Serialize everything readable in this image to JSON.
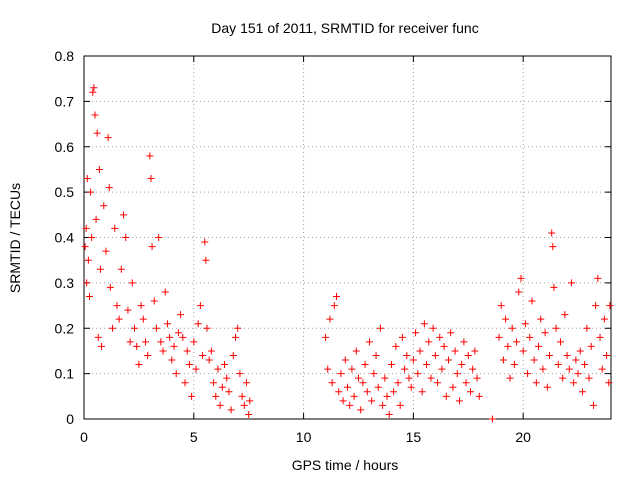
{
  "chart_data": {
    "type": "scatter",
    "title": "Day 151 of 2011, SRMTID for receiver func",
    "xlabel": "GPS time / hours",
    "ylabel": "SRMTID / TECUs",
    "xlim": [
      0,
      24
    ],
    "ylim": [
      0,
      0.8
    ],
    "xticks": [
      0,
      5,
      10,
      15,
      20
    ],
    "yticks": [
      0,
      0.1,
      0.2,
      0.3,
      0.4,
      0.5,
      0.6,
      0.7,
      0.8
    ],
    "grid": true,
    "marker": "plus",
    "color": "#ff0000",
    "series": [
      {
        "name": "SRMTID",
        "points": [
          [
            0.05,
            0.38
          ],
          [
            0.1,
            0.42
          ],
          [
            0.12,
            0.3
          ],
          [
            0.15,
            0.53
          ],
          [
            0.2,
            0.35
          ],
          [
            0.25,
            0.27
          ],
          [
            0.3,
            0.5
          ],
          [
            0.35,
            0.4
          ],
          [
            0.4,
            0.72
          ],
          [
            0.45,
            0.73
          ],
          [
            0.5,
            0.67
          ],
          [
            0.55,
            0.44
          ],
          [
            0.6,
            0.63
          ],
          [
            0.65,
            0.18
          ],
          [
            0.7,
            0.55
          ],
          [
            0.75,
            0.33
          ],
          [
            0.8,
            0.16
          ],
          [
            0.9,
            0.47
          ],
          [
            1.0,
            0.37
          ],
          [
            1.1,
            0.62
          ],
          [
            1.15,
            0.51
          ],
          [
            1.2,
            0.29
          ],
          [
            1.3,
            0.2
          ],
          [
            1.4,
            0.42
          ],
          [
            1.5,
            0.25
          ],
          [
            1.6,
            0.22
          ],
          [
            1.7,
            0.33
          ],
          [
            1.8,
            0.45
          ],
          [
            1.9,
            0.4
          ],
          [
            2.0,
            0.24
          ],
          [
            2.1,
            0.17
          ],
          [
            2.2,
            0.3
          ],
          [
            2.3,
            0.2
          ],
          [
            2.4,
            0.16
          ],
          [
            2.5,
            0.12
          ],
          [
            2.6,
            0.25
          ],
          [
            2.7,
            0.22
          ],
          [
            2.8,
            0.17
          ],
          [
            2.9,
            0.14
          ],
          [
            3.0,
            0.58
          ],
          [
            3.05,
            0.53
          ],
          [
            3.1,
            0.38
          ],
          [
            3.2,
            0.26
          ],
          [
            3.3,
            0.2
          ],
          [
            3.4,
            0.4
          ],
          [
            3.5,
            0.17
          ],
          [
            3.6,
            0.15
          ],
          [
            3.7,
            0.28
          ],
          [
            3.8,
            0.21
          ],
          [
            3.9,
            0.18
          ],
          [
            4.0,
            0.13
          ],
          [
            4.1,
            0.16
          ],
          [
            4.2,
            0.1
          ],
          [
            4.3,
            0.19
          ],
          [
            4.4,
            0.23
          ],
          [
            4.5,
            0.18
          ],
          [
            4.6,
            0.08
          ],
          [
            4.7,
            0.15
          ],
          [
            4.8,
            0.12
          ],
          [
            4.9,
            0.05
          ],
          [
            5.0,
            0.17
          ],
          [
            5.1,
            0.11
          ],
          [
            5.2,
            0.21
          ],
          [
            5.3,
            0.25
          ],
          [
            5.4,
            0.14
          ],
          [
            5.5,
            0.39
          ],
          [
            5.55,
            0.35
          ],
          [
            5.6,
            0.2
          ],
          [
            5.7,
            0.13
          ],
          [
            5.8,
            0.15
          ],
          [
            5.9,
            0.08
          ],
          [
            6.0,
            0.05
          ],
          [
            6.1,
            0.11
          ],
          [
            6.2,
            0.03
          ],
          [
            6.3,
            0.07
          ],
          [
            6.4,
            0.12
          ],
          [
            6.5,
            0.09
          ],
          [
            6.6,
            0.06
          ],
          [
            6.7,
            0.02
          ],
          [
            6.8,
            0.14
          ],
          [
            6.9,
            0.18
          ],
          [
            7.0,
            0.2
          ],
          [
            7.1,
            0.1
          ],
          [
            7.2,
            0.05
          ],
          [
            7.3,
            0.03
          ],
          [
            7.4,
            0.08
          ],
          [
            7.5,
            0.01
          ],
          [
            7.55,
            0.04
          ],
          [
            11.0,
            0.18
          ],
          [
            11.1,
            0.11
          ],
          [
            11.2,
            0.22
          ],
          [
            11.3,
            0.08
          ],
          [
            11.4,
            0.25
          ],
          [
            11.5,
            0.27
          ],
          [
            11.6,
            0.06
          ],
          [
            11.7,
            0.1
          ],
          [
            11.8,
            0.04
          ],
          [
            11.9,
            0.13
          ],
          [
            12.0,
            0.07
          ],
          [
            12.1,
            0.03
          ],
          [
            12.2,
            0.11
          ],
          [
            12.3,
            0.05
          ],
          [
            12.4,
            0.15
          ],
          [
            12.5,
            0.09
          ],
          [
            12.6,
            0.02
          ],
          [
            12.7,
            0.08
          ],
          [
            12.8,
            0.12
          ],
          [
            12.9,
            0.06
          ],
          [
            13.0,
            0.17
          ],
          [
            13.1,
            0.04
          ],
          [
            13.2,
            0.1
          ],
          [
            13.3,
            0.14
          ],
          [
            13.4,
            0.07
          ],
          [
            13.5,
            0.2
          ],
          [
            13.6,
            0.03
          ],
          [
            13.7,
            0.09
          ],
          [
            13.8,
            0.05
          ],
          [
            13.9,
            0.01
          ],
          [
            14.0,
            0.12
          ],
          [
            14.1,
            0.06
          ],
          [
            14.2,
            0.16
          ],
          [
            14.3,
            0.08
          ],
          [
            14.4,
            0.03
          ],
          [
            14.5,
            0.18
          ],
          [
            14.6,
            0.11
          ],
          [
            14.7,
            0.14
          ],
          [
            14.8,
            0.09
          ],
          [
            14.9,
            0.07
          ],
          [
            15.0,
            0.13
          ],
          [
            15.1,
            0.19
          ],
          [
            15.2,
            0.1
          ],
          [
            15.3,
            0.15
          ],
          [
            15.4,
            0.06
          ],
          [
            15.5,
            0.21
          ],
          [
            15.6,
            0.12
          ],
          [
            15.7,
            0.17
          ],
          [
            15.8,
            0.09
          ],
          [
            15.9,
            0.2
          ],
          [
            16.0,
            0.14
          ],
          [
            16.1,
            0.08
          ],
          [
            16.2,
            0.18
          ],
          [
            16.3,
            0.11
          ],
          [
            16.4,
            0.16
          ],
          [
            16.5,
            0.05
          ],
          [
            16.6,
            0.13
          ],
          [
            16.7,
            0.19
          ],
          [
            16.8,
            0.07
          ],
          [
            16.9,
            0.15
          ],
          [
            17.0,
            0.1
          ],
          [
            17.1,
            0.04
          ],
          [
            17.2,
            0.12
          ],
          [
            17.3,
            0.17
          ],
          [
            17.4,
            0.08
          ],
          [
            17.5,
            0.14
          ],
          [
            17.6,
            0.06
          ],
          [
            17.7,
            0.11
          ],
          [
            17.8,
            0.15
          ],
          [
            17.9,
            0.09
          ],
          [
            18.0,
            0.05
          ],
          [
            18.6,
            0.0
          ],
          [
            18.9,
            0.18
          ],
          [
            19.0,
            0.25
          ],
          [
            19.1,
            0.13
          ],
          [
            19.2,
            0.22
          ],
          [
            19.3,
            0.16
          ],
          [
            19.4,
            0.09
          ],
          [
            19.5,
            0.2
          ],
          [
            19.6,
            0.12
          ],
          [
            19.7,
            0.17
          ],
          [
            19.8,
            0.28
          ],
          [
            19.9,
            0.31
          ],
          [
            20.0,
            0.15
          ],
          [
            20.1,
            0.21
          ],
          [
            20.2,
            0.1
          ],
          [
            20.3,
            0.18
          ],
          [
            20.4,
            0.26
          ],
          [
            20.5,
            0.13
          ],
          [
            20.6,
            0.08
          ],
          [
            20.7,
            0.16
          ],
          [
            20.8,
            0.22
          ],
          [
            20.9,
            0.11
          ],
          [
            21.0,
            0.19
          ],
          [
            21.1,
            0.07
          ],
          [
            21.2,
            0.14
          ],
          [
            21.3,
            0.41
          ],
          [
            21.35,
            0.38
          ],
          [
            21.4,
            0.29
          ],
          [
            21.5,
            0.2
          ],
          [
            21.6,
            0.12
          ],
          [
            21.7,
            0.17
          ],
          [
            21.8,
            0.09
          ],
          [
            21.9,
            0.23
          ],
          [
            22.0,
            0.14
          ],
          [
            22.1,
            0.11
          ],
          [
            22.2,
            0.3
          ],
          [
            22.3,
            0.08
          ],
          [
            22.4,
            0.13
          ],
          [
            22.5,
            0.1
          ],
          [
            22.6,
            0.15
          ],
          [
            22.7,
            0.06
          ],
          [
            22.8,
            0.12
          ],
          [
            22.9,
            0.2
          ],
          [
            23.0,
            0.09
          ],
          [
            23.1,
            0.16
          ],
          [
            23.2,
            0.03
          ],
          [
            23.3,
            0.25
          ],
          [
            23.4,
            0.31
          ],
          [
            23.5,
            0.18
          ],
          [
            23.6,
            0.11
          ],
          [
            23.7,
            0.22
          ],
          [
            23.8,
            0.14
          ],
          [
            23.9,
            0.08
          ],
          [
            23.95,
            0.25
          ]
        ]
      }
    ]
  }
}
